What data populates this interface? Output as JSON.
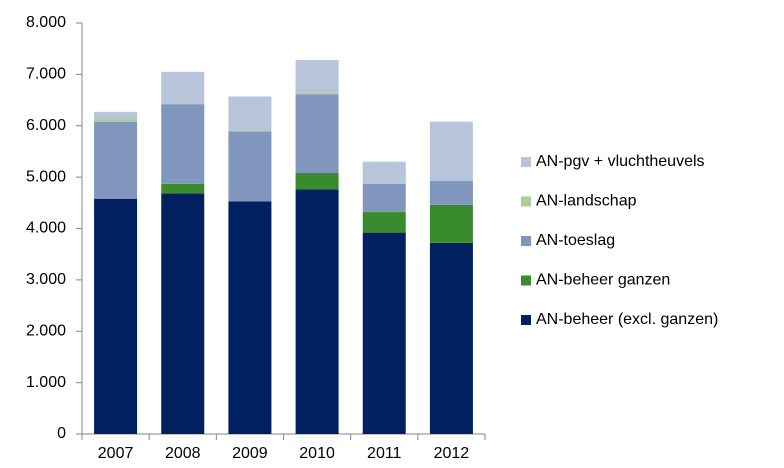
{
  "chart_data": {
    "type": "stacked_bar",
    "categories": [
      "2007",
      "2008",
      "2009",
      "2010",
      "2011",
      "2012"
    ],
    "series": [
      {
        "name": "AN-beheer (excl. ganzen)",
        "color": "#002060",
        "values": [
          4580,
          4680,
          4530,
          4760,
          3920,
          3720
        ]
      },
      {
        "name": "AN-beheer ganzen",
        "color": "#3a8a2e",
        "values": [
          0,
          190,
          0,
          320,
          400,
          740
        ]
      },
      {
        "name": "AN-toeslag",
        "color": "#8096bc",
        "values": [
          1500,
          1550,
          1360,
          1530,
          550,
          470
        ]
      },
      {
        "name": "AN-landschap",
        "color": "#a6cf9a",
        "values": [
          60,
          20,
          20,
          30,
          0,
          0
        ]
      },
      {
        "name": "AN-pgv + vluchtheuvels",
        "color": "#b8c4da",
        "values": [
          130,
          610,
          660,
          640,
          430,
          1150
        ]
      }
    ],
    "ylim": [
      0,
      8000
    ],
    "yticks": [
      0,
      {
        "value": 1000,
        "label": "1.000"
      },
      {
        "value": 2000,
        "label": "2.000"
      },
      {
        "value": 3000,
        "label": "3.000"
      },
      {
        "value": 4000,
        "label": "4.000"
      },
      {
        "value": 5000,
        "label": "5.000"
      },
      {
        "value": 6000,
        "label": "6.000"
      },
      {
        "value": 7000,
        "label": "7.000"
      },
      {
        "value": 8000,
        "label": "8.000"
      }
    ],
    "grid": false,
    "legend": "right"
  }
}
